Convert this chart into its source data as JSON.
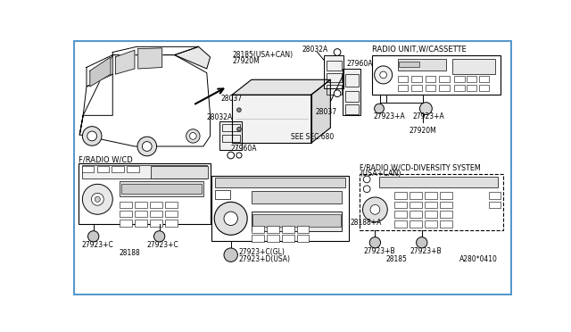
{
  "bg_color": "#ffffff",
  "border_color": "#5599cc",
  "lc": "#000000",
  "labels": {
    "radio_cassette": "RADIO UNIT,W/CASSETTE",
    "f_radio_cd": "F/RADIO W/CD",
    "f_radio_cd_div": "F/RADIO W/CD-DIVERSITY SYSTEM",
    "usa_can": "(USA+CAN)",
    "see_sec": "SEE SEC.680",
    "a280": "A280*0410"
  },
  "parts": {
    "28032A_top": "28032A",
    "28185_usa": "28185(USA+CAN)",
    "27920M_top": "27920M",
    "28037_left": "28037",
    "28037_right": "28037",
    "28032A_left": "28032A",
    "27960A_right": "27960A",
    "27960A_bot": "27960A",
    "27923A_1": "27923+A",
    "27923A_2": "27923+A",
    "27920M_bot": "27920M",
    "27923C_1": "27923+C",
    "27923C_2": "27923+C",
    "28188": "28188",
    "27923C_gl": "27923+C(GL)",
    "27923D_usa": "27923+D(USA)",
    "28188A": "28188+A",
    "27923B_1": "27923+B",
    "27923B_2": "27923+B",
    "28185_bot": "28185"
  }
}
